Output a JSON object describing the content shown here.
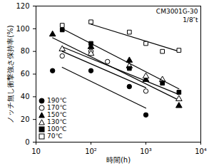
{
  "chart_data": {
    "type": "scatter",
    "x_label": "時間(h)",
    "y_label": "ノッチ無し衝撃強さ保持率(%)",
    "annotations": [
      "CM3001G-30",
      "1/8″t"
    ],
    "log": "x",
    "xlim": [
      10,
      10000
    ],
    "xticks": [
      10,
      {
        "value": 100,
        "label": "10²"
      },
      {
        "value": 1000,
        "label": "10³"
      },
      {
        "value": 10000,
        "label": "10⁴"
      }
    ],
    "ylim": [
      0,
      120
    ],
    "yticks": [
      0,
      20,
      40,
      60,
      80,
      100,
      120
    ],
    "grid": false,
    "legend": "lower left",
    "series": [
      {
        "name": "190℃",
        "marker": "circle",
        "color": "#000000",
        "x": [
          20,
          100,
          500,
          1000
        ],
        "values": [
          63,
          63,
          49,
          24
        ],
        "fit_x": [
          30,
          1000
        ],
        "fit_values": [
          66,
          30
        ]
      },
      {
        "name": "170℃",
        "marker": "circle-open",
        "color": "#000000",
        "x": [
          30,
          100,
          200,
          1000
        ],
        "values": [
          76,
          80,
          71,
          45
        ],
        "fit_x": [
          30,
          1000
        ],
        "fit_values": [
          80,
          48
        ]
      },
      {
        "name": "150℃",
        "marker": "triangle",
        "color": "#000000",
        "x": [
          20,
          100,
          500,
          1000,
          4000
        ],
        "values": [
          95,
          84,
          72,
          55,
          32
        ],
        "fit_x": [
          20,
          4000
        ],
        "fit_values": [
          92,
          37
        ]
      },
      {
        "name": "130℃",
        "marker": "triangle-open",
        "color": "#000000",
        "x": [
          30,
          100,
          500,
          1000,
          2000,
          4000
        ],
        "values": [
          82,
          78,
          67,
          58,
          55,
          38
        ],
        "fit_x": [
          30,
          4000
        ],
        "fit_values": [
          84,
          42
        ]
      },
      {
        "name": "100℃",
        "marker": "square",
        "color": "#000000",
        "x": [
          30,
          100,
          500,
          2000,
          4000
        ],
        "values": [
          99,
          87,
          65,
          52,
          44
        ],
        "fit_x": [
          30,
          4000
        ],
        "fit_values": [
          100,
          47
        ]
      },
      {
        "name": "70℃",
        "marker": "square-open",
        "color": "#000000",
        "x": [
          30,
          100,
          500,
          1000,
          2000,
          4000
        ],
        "values": [
          103,
          106,
          97,
          87,
          80,
          81
        ],
        "fit_x": [
          100,
          4000
        ],
        "fit_values": [
          104,
          80
        ]
      }
    ]
  }
}
